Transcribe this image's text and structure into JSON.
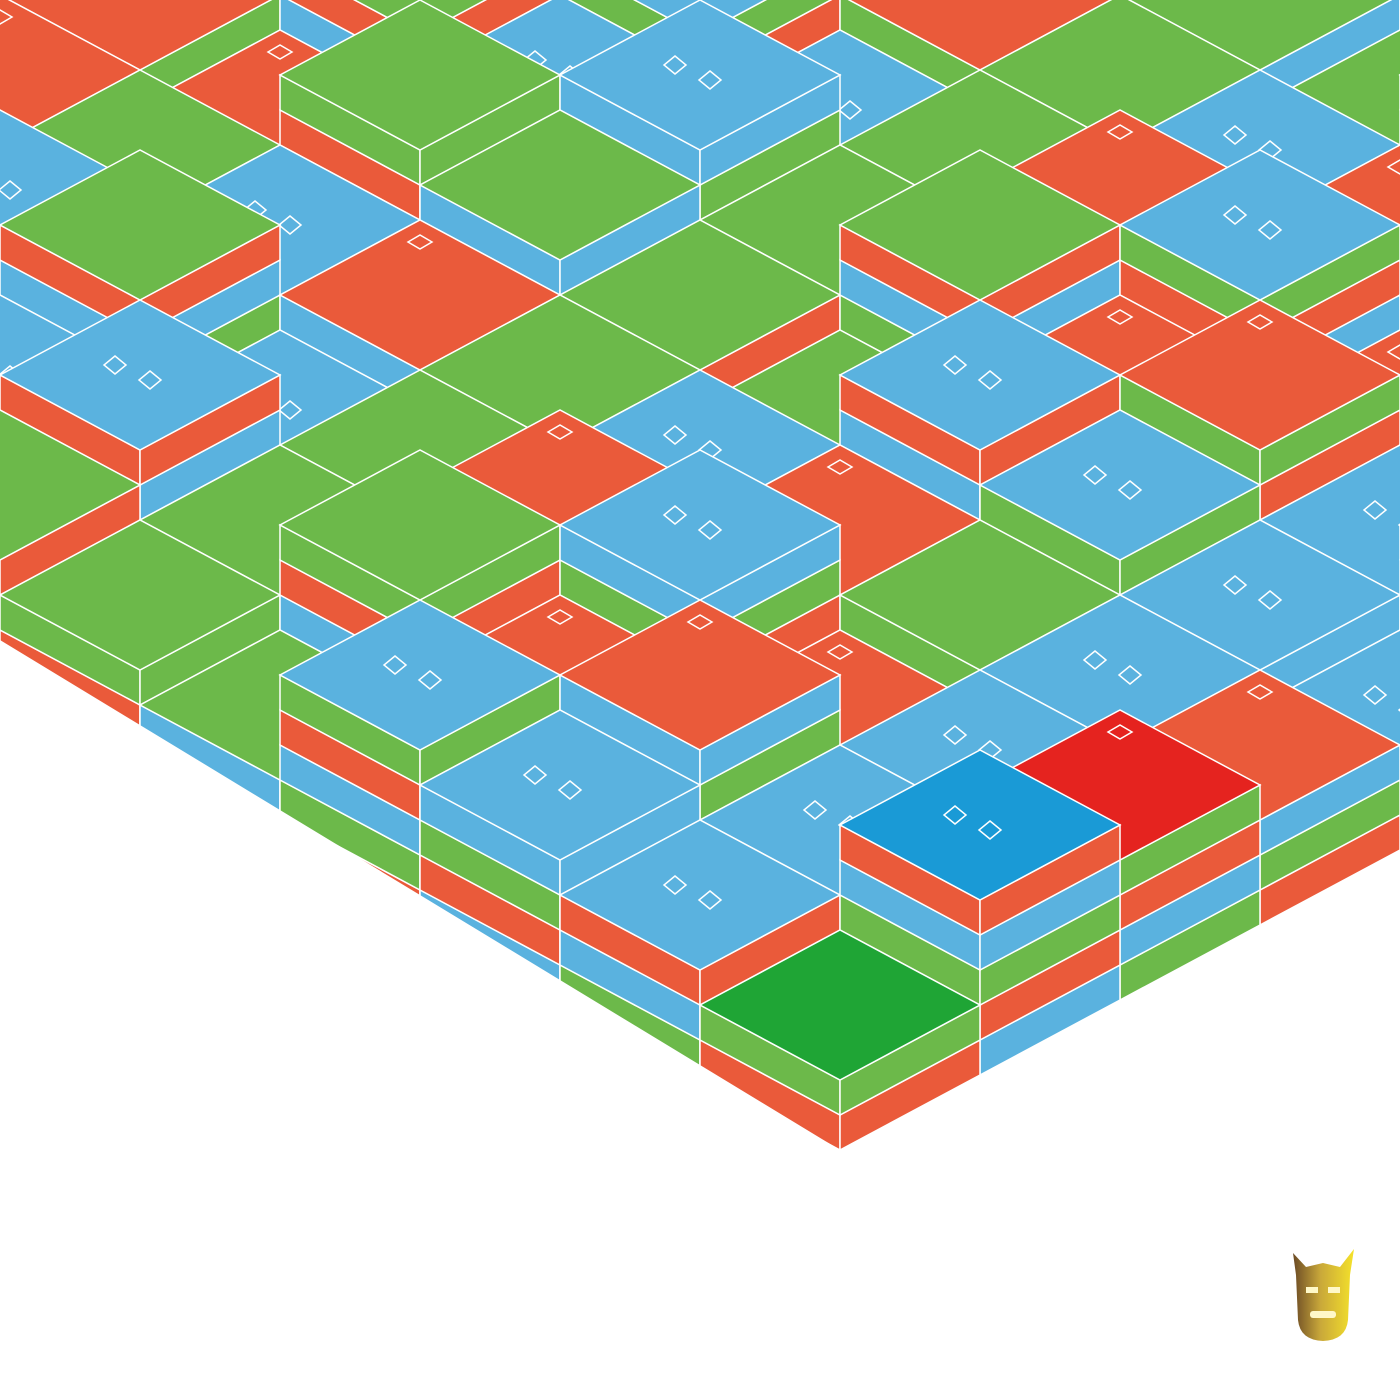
{
  "artwork": {
    "background": "#ffffff",
    "palette": {
      "red": "#ea5a3a",
      "green": "#6cb94a",
      "blue": "#5ab2df",
      "accent_red": "#e5231f",
      "accent_green": "#1fa535",
      "accent_blue": "#1a9ad6",
      "line": "#ffffff"
    },
    "logo_icon": "exo-mask-logo",
    "logo_colors": [
      "#f2d92a",
      "#7a5a2a"
    ]
  }
}
